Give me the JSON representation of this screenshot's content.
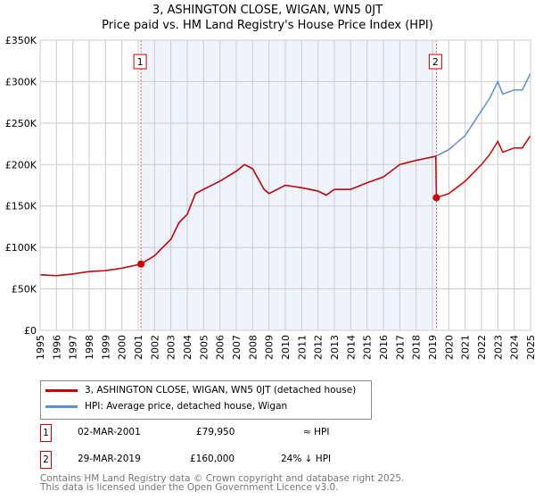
{
  "chart_data": {
    "type": "line",
    "title": "3, ASHINGTON CLOSE, WIGAN, WN5 0JT",
    "subtitle": "Price paid vs. HM Land Registry's House Price Index (HPI)",
    "xlim": [
      1995,
      2025
    ],
    "ylim": [
      0,
      350000
    ],
    "x_ticks": [
      "1995",
      "1996",
      "1997",
      "1998",
      "1999",
      "2000",
      "2001",
      "2002",
      "2003",
      "2004",
      "2005",
      "2006",
      "2007",
      "2008",
      "2009",
      "2010",
      "2011",
      "2012",
      "2013",
      "2014",
      "2015",
      "2016",
      "2017",
      "2018",
      "2019",
      "2020",
      "2021",
      "2022",
      "2023",
      "2024",
      "2025"
    ],
    "y_ticks": [
      {
        "v": 0,
        "l": "£0"
      },
      {
        "v": 50000,
        "l": "£50K"
      },
      {
        "v": 100000,
        "l": "£100K"
      },
      {
        "v": 150000,
        "l": "£150K"
      },
      {
        "v": 200000,
        "l": "£200K"
      },
      {
        "v": 250000,
        "l": "£250K"
      },
      {
        "v": 300000,
        "l": "£300K"
      },
      {
        "v": 350000,
        "l": "£350K"
      }
    ],
    "series": [
      {
        "name": "HPI: Average price, detached house, Wigan",
        "color": "#5b8fd0",
        "x": [
          1995,
          1996,
          1997,
          1998,
          1999,
          2000,
          2001.17,
          2002,
          2002.5,
          2003,
          2003.5,
          2004,
          2004.5,
          2005,
          2006,
          2007,
          2007.5,
          2008,
          2008.7,
          2009,
          2010,
          2011,
          2012,
          2012.5,
          2013,
          2014,
          2015,
          2016,
          2017,
          2018,
          2019.2,
          2020,
          2021,
          2022,
          2022.5,
          2023,
          2023.3,
          2024,
          2024.5,
          2025
        ],
        "y": [
          67000,
          66000,
          68000,
          71000,
          72000,
          75000,
          80000,
          90000,
          100000,
          110000,
          130000,
          140000,
          165000,
          170000,
          180000,
          192000,
          200000,
          195000,
          170000,
          165000,
          175000,
          172000,
          168000,
          163000,
          170000,
          170000,
          178000,
          185000,
          200000,
          205000,
          210000,
          218000,
          235000,
          265000,
          280000,
          300000,
          285000,
          290000,
          290000,
          310000
        ]
      },
      {
        "name": "3, ASHINGTON CLOSE, WIGAN, WN5 0JT (detached house)",
        "color": "#cc0000",
        "x": [
          1995,
          1996,
          1997,
          1998,
          1999,
          2000,
          2001.17,
          2002,
          2002.5,
          2003,
          2003.5,
          2004,
          2004.5,
          2005,
          2006,
          2007,
          2007.5,
          2008,
          2008.7,
          2009,
          2010,
          2011,
          2012,
          2012.5,
          2013,
          2014,
          2015,
          2016,
          2017,
          2018,
          2019.2,
          2019.24,
          2020,
          2021,
          2022,
          2022.5,
          2023,
          2023.3,
          2024,
          2024.5,
          2025
        ],
        "y": [
          67000,
          66000,
          68000,
          71000,
          72000,
          75000,
          79950,
          90000,
          100000,
          110000,
          130000,
          140000,
          165000,
          170000,
          180000,
          192000,
          200000,
          195000,
          170000,
          165000,
          175000,
          172000,
          168000,
          163000,
          170000,
          170000,
          178000,
          185000,
          200000,
          205000,
          210000,
          160000,
          165000,
          180000,
          200000,
          212000,
          228000,
          215000,
          220000,
          220000,
          235000
        ]
      }
    ],
    "sales": [
      {
        "label": "1",
        "x": 2001.17,
        "y": 79950,
        "date": "02-MAR-2001",
        "price": "£79,950",
        "hpi": "≈ HPI"
      },
      {
        "label": "2",
        "x": 2019.24,
        "y": 160000,
        "date": "29-MAR-2019",
        "price": "£160,000",
        "hpi": "24% ↓ HPI"
      }
    ]
  },
  "footer": [
    "Contains HM Land Registry data © Crown copyright and database right 2025.",
    "This data is licensed under the Open Government Licence v3.0."
  ]
}
